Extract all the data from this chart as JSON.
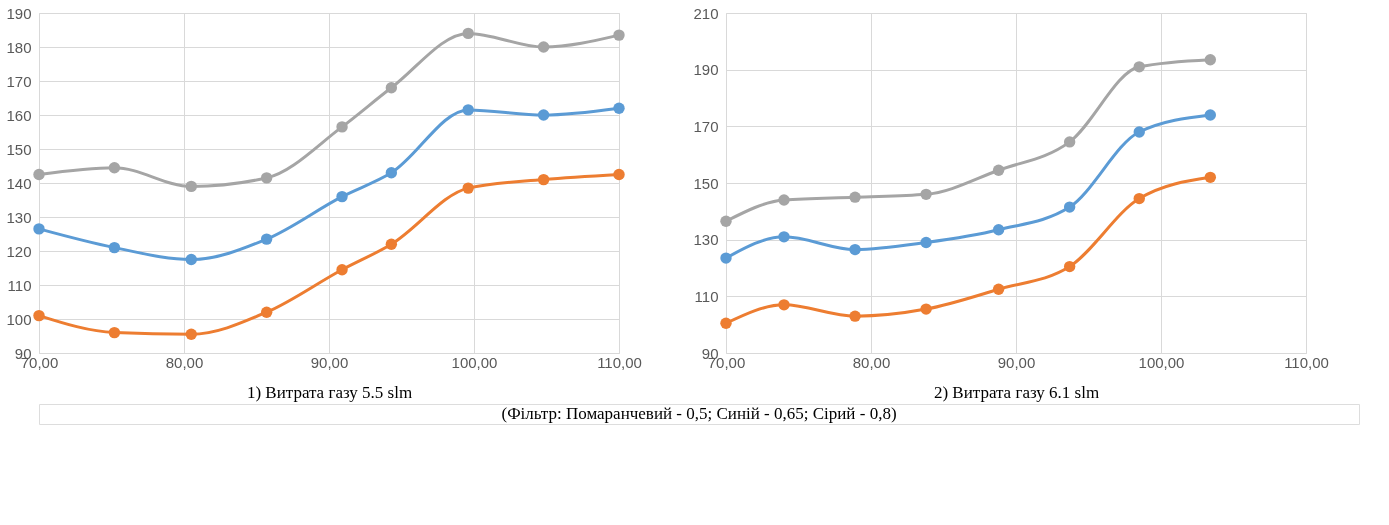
{
  "chart_data": [
    {
      "type": "line",
      "xlabel": "1) Витрата газу 5.5 slm",
      "x": [
        70,
        75.2,
        80.5,
        85.7,
        90.9,
        94.3,
        99.6,
        104.8,
        110
      ],
      "series": [
        {
          "color": "#ed7d31",
          "values": [
            101,
            96,
            95.5,
            102,
            114.5,
            122,
            138.5,
            141,
            142.5
          ]
        },
        {
          "color": "#5b9bd5",
          "values": [
            126.5,
            121,
            117.5,
            123.5,
            136,
            143,
            161.5,
            160,
            162
          ]
        },
        {
          "color": "#a5a5a5",
          "values": [
            142.5,
            144.5,
            139,
            141.5,
            156.5,
            168,
            184,
            180,
            183.5
          ]
        }
      ],
      "xlim": [
        70,
        110
      ],
      "xticks": [
        {
          "value": 70,
          "label": "70,00"
        },
        {
          "value": 80,
          "label": "80,00"
        },
        {
          "value": 90,
          "label": "90,00"
        },
        {
          "value": 100,
          "label": "100,00"
        },
        {
          "value": 110,
          "label": "110,00"
        }
      ],
      "ylim": [
        90,
        190
      ],
      "yticks": [
        90,
        100,
        110,
        120,
        130,
        140,
        150,
        160,
        170,
        180,
        190
      ],
      "grid": true,
      "marker": "circle",
      "line_style": "solid",
      "annotations": [
        "(Фільтр: Помаранчевий - 0,5; Синій - 0,65; Сірий - 0,8)"
      ]
    },
    {
      "type": "line",
      "xlabel": "2) Витрата газу 6.1 slm",
      "x": [
        70,
        74,
        78.9,
        83.8,
        88.8,
        93.7,
        98.5,
        103.4
      ],
      "series": [
        {
          "color": "#ed7d31",
          "values": [
            100.5,
            107,
            103,
            105.5,
            112.5,
            120.5,
            144.5,
            152
          ]
        },
        {
          "color": "#5b9bd5",
          "values": [
            123.5,
            131,
            126.5,
            129,
            133.5,
            141.5,
            168,
            174
          ]
        },
        {
          "color": "#a5a5a5",
          "values": [
            136.5,
            144,
            145,
            146,
            154.5,
            164.5,
            191,
            193.5
          ]
        }
      ],
      "xlim": [
        70,
        110
      ],
      "xticks": [
        {
          "value": 70,
          "label": "70,00"
        },
        {
          "value": 80,
          "label": "80,00"
        },
        {
          "value": 90,
          "label": "90,00"
        },
        {
          "value": 100,
          "label": "100,00"
        },
        {
          "value": 110,
          "label": "110,00"
        }
      ],
      "ylim": [
        90,
        210
      ],
      "yticks": [
        90,
        110,
        130,
        150,
        170,
        190,
        210
      ],
      "grid": true,
      "marker": "circle",
      "line_style": "solid"
    }
  ]
}
